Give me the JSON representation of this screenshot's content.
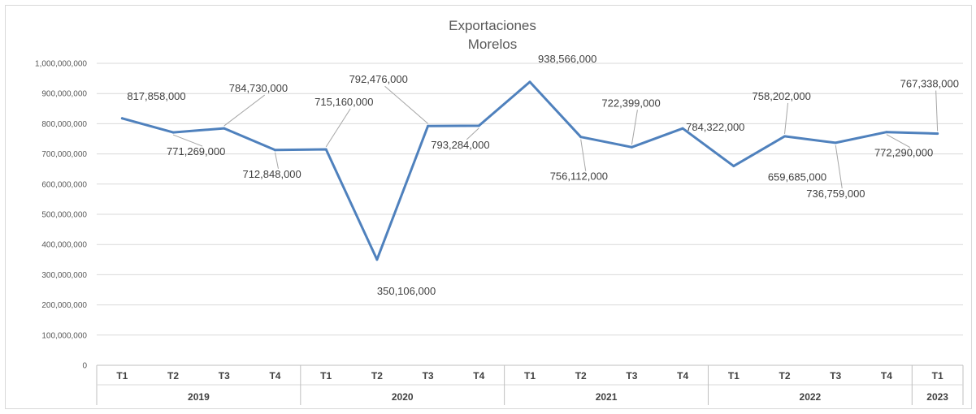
{
  "chart_data": {
    "type": "line",
    "title": "Exportaciones",
    "subtitle": "Morelos",
    "xlabel": "",
    "ylabel": "",
    "ylim": [
      0,
      1000000000
    ],
    "yticks": [
      "0",
      "100,000,000",
      "200,000,000",
      "300,000,000",
      "400,000,000",
      "500,000,000",
      "600,000,000",
      "700,000,000",
      "800,000,000",
      "900,000,000",
      "1,000,000,000"
    ],
    "grid": true,
    "legend": "none",
    "categories": [
      "T1",
      "T2",
      "T3",
      "T4",
      "T1",
      "T2",
      "T3",
      "T4",
      "T1",
      "T2",
      "T3",
      "T4",
      "T1",
      "T2",
      "T3",
      "T4",
      "T1"
    ],
    "groups": [
      {
        "label": "2019",
        "count": 4
      },
      {
        "label": "2020",
        "count": 4
      },
      {
        "label": "2021",
        "count": 4
      },
      {
        "label": "2022",
        "count": 4
      },
      {
        "label": "2023",
        "count": 1
      }
    ],
    "series": [
      {
        "values": [
          817858000,
          771269000,
          784730000,
          712848000,
          715160000,
          350106000,
          792476000,
          793284000,
          938566000,
          756112000,
          722399000,
          784322000,
          659685000,
          758202000,
          736759000,
          772290000,
          767338000
        ],
        "color": "#4f81bd"
      }
    ],
    "data_labels": [
      "817,858,000",
      "771,269,000",
      "784,730,000",
      "712,848,000",
      "715,160,000",
      "350,106,000",
      "792,476,000",
      "793,284,000",
      "938,566,000",
      "756,112,000",
      "722,399,000",
      "784,322,000",
      "659,685,000",
      "758,202,000",
      "736,759,000",
      "772,290,000",
      "767,338,000"
    ],
    "colors": {
      "line": "#4f81bd",
      "grid": "#d9d9d9",
      "axis": "#bfbfbf",
      "leader": "#a6a6a6",
      "text": "#404040"
    }
  }
}
